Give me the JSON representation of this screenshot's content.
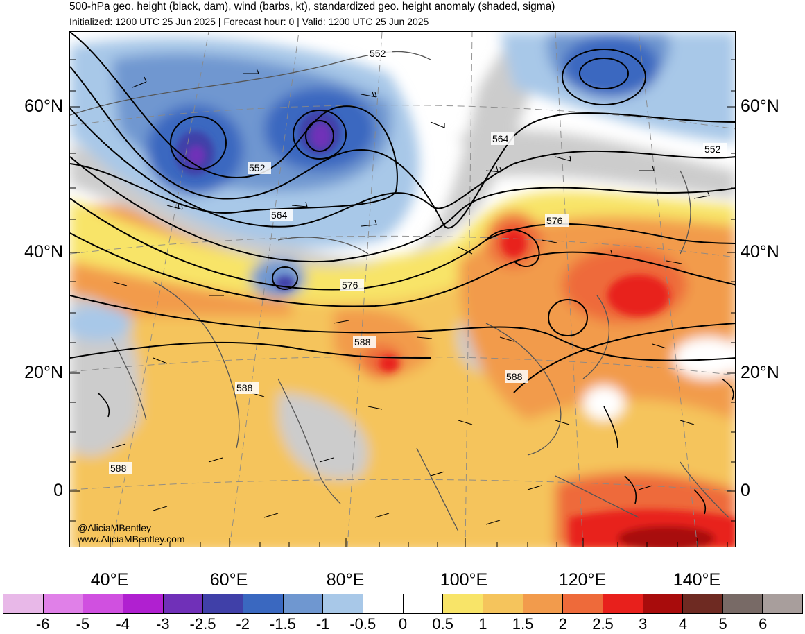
{
  "title": "500-hPa geo. height (black, dam), wind (barbs, kt), standardized geo. height anomaly (shaded, sigma)",
  "subtitle": "Initialized: 1200 UTC 25 Jun 2025 | Forecast hour: 0 | Valid: 1200 UTC 25 Jun 2025",
  "map": {
    "lat_labels": [
      "60°N",
      "40°N",
      "20°N",
      "0"
    ],
    "lon_labels": [
      "40°E",
      "60°E",
      "80°E",
      "100°E",
      "120°E",
      "140°E"
    ],
    "contour_labels": [
      "552",
      "552",
      "552",
      "564",
      "564",
      "576",
      "576",
      "588",
      "588",
      "588",
      "588"
    ],
    "credit_handle": "@AliciaMBentley",
    "credit_site": "www.AliciaMBentley.com"
  },
  "colorbar": {
    "colors": [
      "#e8b8e8",
      "#e080e8",
      "#d050e0",
      "#b020d0",
      "#7030b8",
      "#4040a8",
      "#3a68c0",
      "#6f97d0",
      "#a8c8e8",
      "#ffffff",
      "#ffffff",
      "#f8e468",
      "#f5c45c",
      "#f29b4c",
      "#ee6a3a",
      "#e8201c",
      "#a80c0c",
      "#6e2a22",
      "#786a66",
      "#a89e9c"
    ],
    "labels": [
      "-6",
      "-5",
      "-4",
      "-3",
      "-2.5",
      "-2",
      "-1.5",
      "-1",
      "-0.5",
      "0",
      "0.5",
      "1",
      "1.5",
      "2",
      "2.5",
      "3",
      "4",
      "5",
      "6"
    ]
  }
}
